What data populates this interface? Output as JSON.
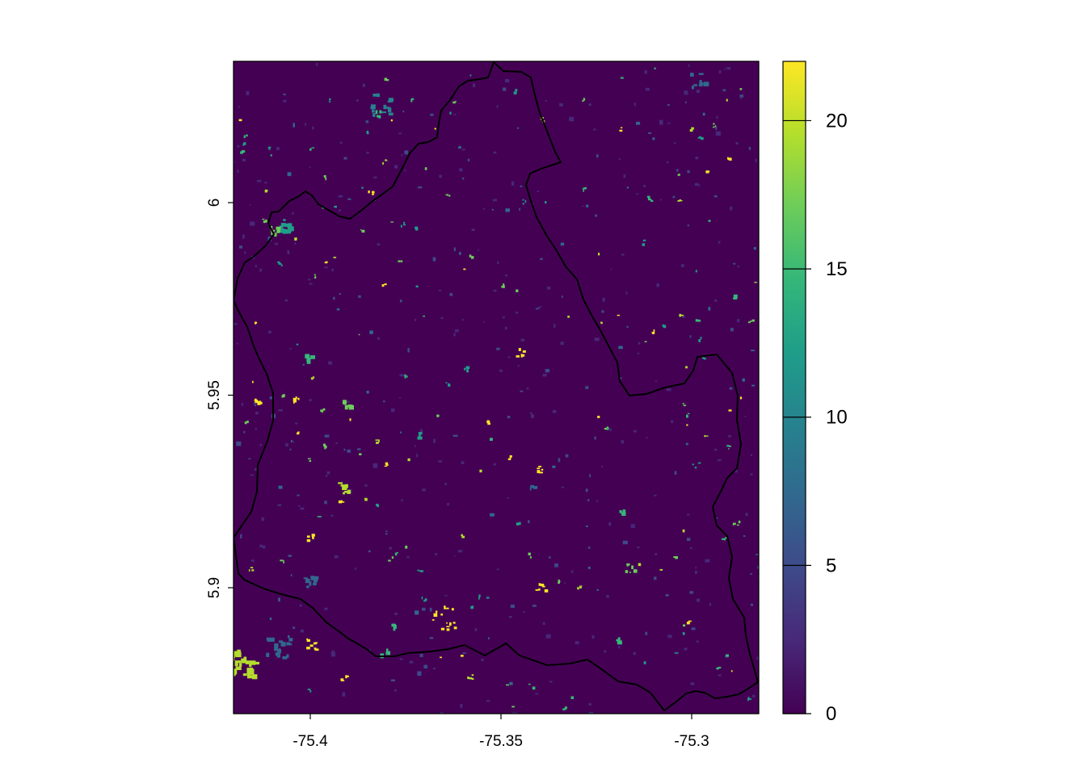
{
  "map": {
    "colormap": "viridis",
    "background_value_color": "#440154",
    "boundary_color": "#000000",
    "x_axis": {
      "ticks": [
        -75.4,
        -75.35,
        -75.3
      ],
      "tick_labels": [
        "-75.4",
        "-75.35",
        "-75.3"
      ]
    },
    "y_axis": {
      "ticks": [
        5.9,
        5.95,
        6
      ],
      "tick_labels": [
        "5.9",
        "5.95",
        "6"
      ]
    },
    "legend": {
      "range": [
        0,
        22
      ],
      "ticks": [
        0,
        5,
        10,
        15,
        20
      ],
      "tick_labels": [
        "0",
        "5",
        "10",
        "15",
        "20"
      ],
      "colors": [
        "#440154",
        "#482878",
        "#3E4A89",
        "#31688E",
        "#26828E",
        "#1F9E89",
        "#35B779",
        "#6DCD59",
        "#B4DE2C",
        "#FDE725"
      ]
    }
  }
}
